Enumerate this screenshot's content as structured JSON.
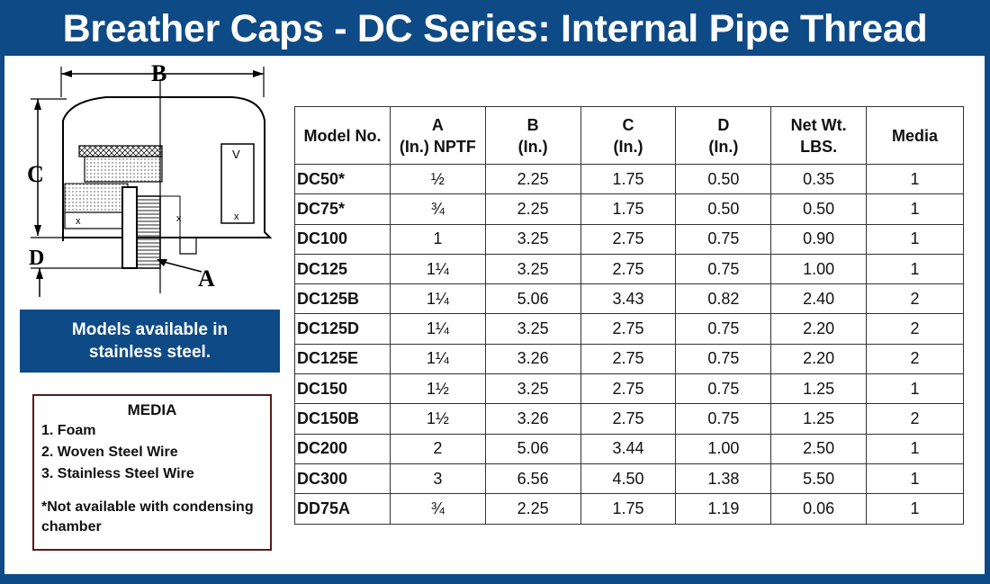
{
  "title": "Breather Caps - DC Series: Internal Pipe Thread",
  "diagram": {
    "labels": {
      "a": "A",
      "b": "B",
      "c": "C",
      "d": "D"
    }
  },
  "banner": {
    "line1": "Models available in",
    "line2": "stainless steel."
  },
  "media": {
    "heading": "MEDIA",
    "items": [
      "1. Foam",
      "2. Woven Steel Wire",
      "3. Stainless Steel Wire"
    ],
    "note_line1": "*Not available with condensing",
    "note_line2": "chamber"
  },
  "table": {
    "headers": [
      {
        "top": "",
        "bottom": "Model No."
      },
      {
        "top": "A",
        "bottom": "(In.) NPTF"
      },
      {
        "top": "B",
        "bottom": "(In.)"
      },
      {
        "top": "C",
        "bottom": "(In.)"
      },
      {
        "top": "D",
        "bottom": "(In.)"
      },
      {
        "top": "Net Wt.",
        "bottom": "LBS."
      },
      {
        "top": "",
        "bottom": "Media"
      }
    ],
    "rows": [
      [
        "DC50*",
        "½",
        "2.25",
        "1.75",
        "0.50",
        "0.35",
        "1"
      ],
      [
        "DC75*",
        "¾",
        "2.25",
        "1.75",
        "0.50",
        "0.50",
        "1"
      ],
      [
        "DC100",
        "1",
        "3.25",
        "2.75",
        "0.75",
        "0.90",
        "1"
      ],
      [
        "DC125",
        "1¼",
        "3.25",
        "2.75",
        "0.75",
        "1.00",
        "1"
      ],
      [
        "DC125B",
        "1¼",
        "5.06",
        "3.43",
        "0.82",
        "2.40",
        "2"
      ],
      [
        "DC125D",
        "1¼",
        "3.25",
        "2.75",
        "0.75",
        "2.20",
        "2"
      ],
      [
        "DC125E",
        "1¼",
        "3.26",
        "2.75",
        "0.75",
        "2.20",
        "2"
      ],
      [
        "DC150",
        "1½",
        "3.25",
        "2.75",
        "0.75",
        "1.25",
        "1"
      ],
      [
        "DC150B",
        "1½",
        "3.26",
        "2.75",
        "0.75",
        "1.25",
        "2"
      ],
      [
        "DC200",
        "2",
        "5.06",
        "3.44",
        "1.00",
        "2.50",
        "1"
      ],
      [
        "DC300",
        "3",
        "6.56",
        "4.50",
        "1.38",
        "5.50",
        "1"
      ],
      [
        "DD75A",
        "¾",
        "2.25",
        "1.75",
        "1.19",
        "0.06",
        "1"
      ]
    ]
  }
}
